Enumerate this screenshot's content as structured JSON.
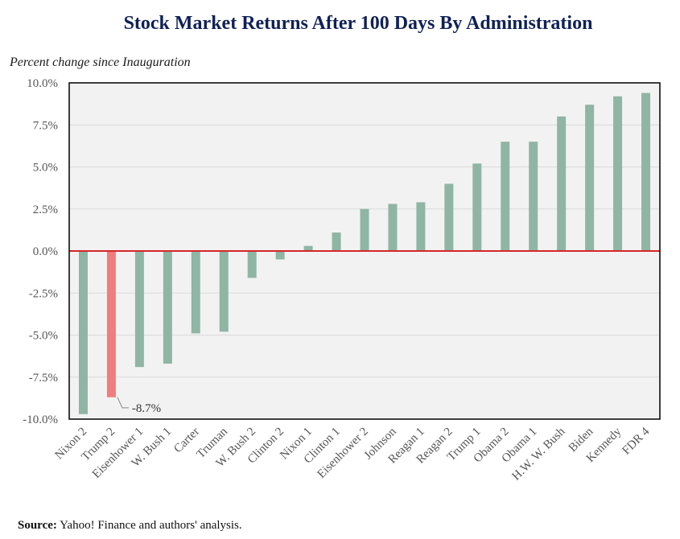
{
  "chart_data": {
    "type": "bar",
    "title": "Stock Market Returns After 100 Days By Administration",
    "subtitle": "Percent change since Inauguration",
    "xlabel": "",
    "ylabel": "",
    "ylim": [
      -10,
      10
    ],
    "yticks": [
      10,
      7.5,
      5,
      2.5,
      0,
      -2.5,
      -5,
      -7.5,
      -10
    ],
    "ytick_labels": [
      "10.0%",
      "7.5%",
      "5.0%",
      "2.5%",
      "0.0%",
      "-2.5%",
      "-5.0%",
      "-7.5%",
      "-10.0%"
    ],
    "categories": [
      "Nixon 2",
      "Trump 2",
      "Eisenhower 1",
      "W. Bush 1",
      "Carter",
      "Truman",
      "W. Bush 2",
      "Clinton 2",
      "Nixon 1",
      "Clinton 1",
      "Eisenhower 2",
      "Johnson",
      "Reagan 1",
      "Reagan 2",
      "Trump 1",
      "Obama 2",
      "Obama 1",
      "H.W. W. Bush",
      "Biden",
      "Kennedy",
      "FDR 4"
    ],
    "values": [
      -9.7,
      -8.7,
      -6.9,
      -6.7,
      -4.9,
      -4.8,
      -1.6,
      -0.5,
      0.3,
      1.1,
      2.5,
      2.8,
      2.9,
      4.0,
      5.2,
      6.5,
      6.5,
      8.0,
      8.7,
      9.2,
      9.4
    ],
    "highlight_index": 1,
    "annotation": {
      "index": 1,
      "text": "-8.7%"
    },
    "colors": {
      "bar": "#8fb5a5",
      "highlight": "#f07d7d",
      "zero_line": "#d62728",
      "grid": "#d9d9d9",
      "plot_bg": "#f2f2f2",
      "frame": "#000000",
      "title": "#0f2157"
    },
    "grid": true
  },
  "source": {
    "label": "Source:",
    "text": " Yahoo! Finance and authors' analysis."
  }
}
